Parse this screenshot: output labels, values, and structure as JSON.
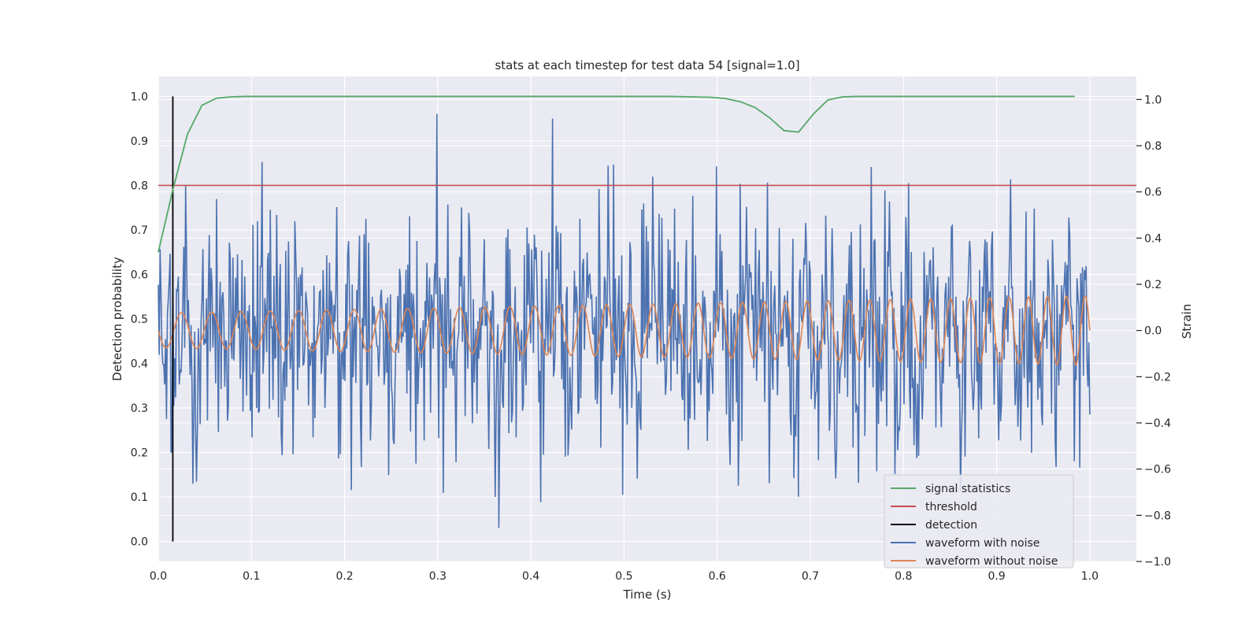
{
  "chart_data": {
    "type": "line",
    "title": "stats at each timestep for test data 54 [signal=1.0]",
    "xlabel": "Time (s)",
    "ylabel_left": "Detection probability",
    "ylabel_right": "Strain",
    "xlim": [
      0.0,
      1.05
    ],
    "ylim_left": [
      -0.045,
      1.045
    ],
    "ylim_right": [
      -1.0,
      1.1
    ],
    "xticks": [
      "0.0",
      "0.1",
      "0.2",
      "0.3",
      "0.4",
      "0.5",
      "0.6",
      "0.7",
      "0.8",
      "0.9",
      "1.0"
    ],
    "yticks_left": [
      "0.0",
      "0.1",
      "0.2",
      "0.3",
      "0.4",
      "0.5",
      "0.6",
      "0.7",
      "0.8",
      "0.9",
      "1.0"
    ],
    "yticks_right": [
      "−1.0",
      "−0.8",
      "−0.6",
      "−0.4",
      "−0.2",
      "0.0",
      "0.2",
      "0.4",
      "0.6",
      "0.8",
      "1.0"
    ],
    "grid": true,
    "legend_position": "lower-right",
    "colors": {
      "background": "#eaeaf2",
      "grid": "#ffffff",
      "signal_statistics": "#55a868",
      "threshold": "#c44e52",
      "detection": "#000000",
      "waveform_with_noise": "#4c72b0",
      "waveform_without_noise": "#dd8452"
    },
    "legend": [
      {
        "key": "signal_statistics",
        "label": "signal statistics"
      },
      {
        "key": "threshold",
        "label": "threshold"
      },
      {
        "key": "detection",
        "label": "detection"
      },
      {
        "key": "waveform_with_noise",
        "label": "waveform with noise"
      },
      {
        "key": "waveform_without_noise",
        "label": "waveform without noise"
      }
    ],
    "signal_statistics": {
      "axis": "left",
      "x": [
        0.0,
        0.0156,
        0.0313,
        0.0469,
        0.0625,
        0.0781,
        0.0938,
        0.1094,
        0.125,
        0.2,
        0.3,
        0.4,
        0.5,
        0.55,
        0.5938,
        0.6094,
        0.625,
        0.6406,
        0.6563,
        0.6719,
        0.6875,
        0.7031,
        0.7188,
        0.7344,
        0.75,
        0.8,
        0.9,
        0.984
      ],
      "y": [
        0.65,
        0.79,
        0.915,
        0.98,
        0.996,
        0.999,
        1.0,
        1.0,
        1.0,
        1.0,
        1.0,
        1.0,
        1.0,
        1.0,
        0.998,
        0.995,
        0.988,
        0.975,
        0.952,
        0.923,
        0.92,
        0.96,
        0.992,
        0.999,
        1.0,
        1.0,
        1.0,
        1.0
      ]
    },
    "threshold": {
      "axis": "left",
      "value": 0.8
    },
    "detection": {
      "axis": "left",
      "x": 0.0156,
      "y_range": [
        0.0,
        1.0
      ]
    },
    "waveform_with_noise": {
      "axis": "right",
      "x_start": 0.0,
      "x_end": 1.0,
      "samples": 1024,
      "approx_y_range": [
        -1.0,
        1.0
      ]
    },
    "waveform_without_noise": {
      "axis": "right",
      "x_start": 0.0,
      "x_end": 1.0,
      "amplitude_start": 0.075,
      "amplitude_end": 0.15,
      "cycles_start_per_s": 30,
      "cycles_end_per_s": 50
    }
  }
}
